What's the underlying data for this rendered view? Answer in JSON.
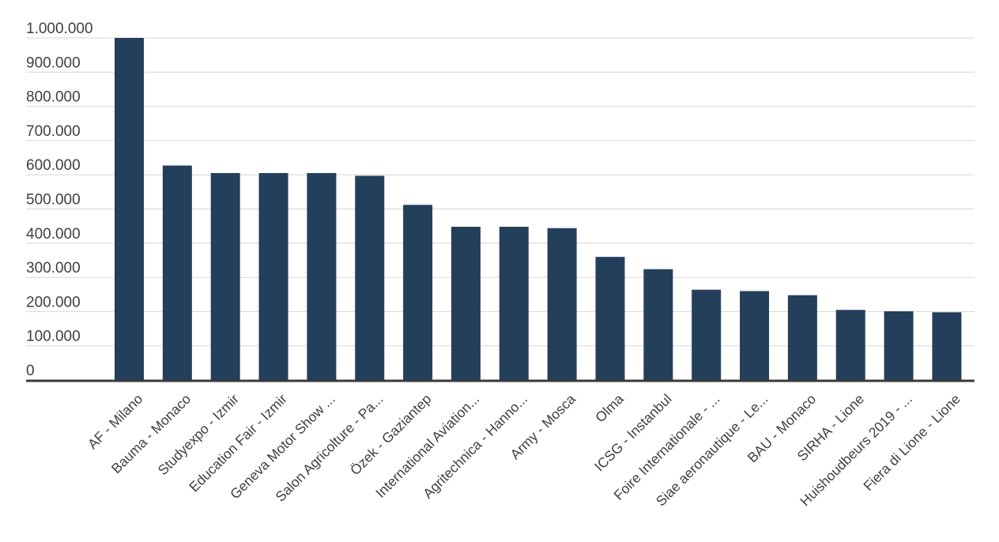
{
  "chart_data": {
    "type": "bar",
    "title": "",
    "xlabel": "",
    "ylabel": "",
    "ylim": [
      0,
      1000000
    ],
    "grid": true,
    "legend": "none",
    "colors": {
      "bar": "#243f5c",
      "grid": "#d6d6d6",
      "axis": "#3a3a3a",
      "text": "#3f3f3f"
    },
    "y_ticks": [
      {
        "value": 0,
        "label": "0"
      },
      {
        "value": 100000,
        "label": "100.000"
      },
      {
        "value": 200000,
        "label": "200.000"
      },
      {
        "value": 300000,
        "label": "300.000"
      },
      {
        "value": 400000,
        "label": "400.000"
      },
      {
        "value": 500000,
        "label": "500.000"
      },
      {
        "value": 600000,
        "label": "600.000"
      },
      {
        "value": 700000,
        "label": "700.000"
      },
      {
        "value": 800000,
        "label": "800.000"
      },
      {
        "value": 900000,
        "label": "900.000"
      },
      {
        "value": 1000000,
        "label": "1.000.000"
      }
    ],
    "categories": [
      "AF - Milano",
      "Bauma - Monaco",
      "Studyexpo - Izmir",
      "Education Fair - Izmir",
      "Geneva Motor Show ...",
      "Salon Agricolture - Pa...",
      "Özek - Gaziantep",
      "International Aviation...",
      "Agritechnica - Hanno...",
      "Army - Mosca",
      "Olma",
      "ICSG - Instanbul",
      "Foire Internationale - ...",
      "Siae aeronautique - Le...",
      "BAU - Monaco",
      "SIRHA - Lione",
      "Huishoudbeurs 2019 - ...",
      "Fiera di Lione - Lione"
    ],
    "values": [
      1000000,
      627000,
      605000,
      605000,
      605000,
      597000,
      512000,
      448000,
      448000,
      444000,
      360000,
      324000,
      264000,
      260000,
      248000,
      205000,
      201000,
      198000
    ]
  }
}
